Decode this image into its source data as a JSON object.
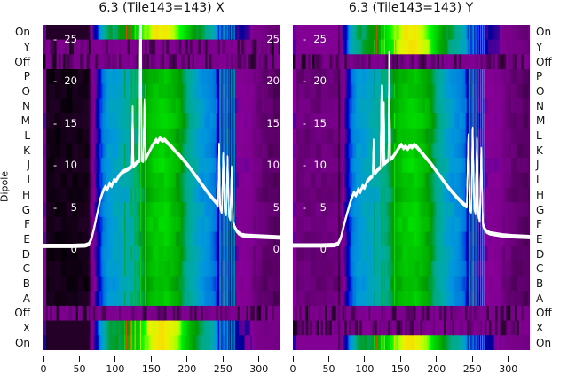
{
  "chart_data": {
    "type": "heatmap",
    "colormap": "nipy_spectral",
    "colormap_stops": [
      [
        0.0,
        [
          0,
          0,
          0
        ]
      ],
      [
        0.05,
        [
          119,
          0,
          136
        ]
      ],
      [
        0.1,
        [
          136,
          0,
          153
        ]
      ],
      [
        0.15,
        [
          0,
          0,
          153
        ]
      ],
      [
        0.2,
        [
          0,
          0,
          221
        ]
      ],
      [
        0.25,
        [
          0,
          119,
          221
        ]
      ],
      [
        0.3,
        [
          0,
          153,
          221
        ]
      ],
      [
        0.35,
        [
          0,
          170,
          170
        ]
      ],
      [
        0.4,
        [
          0,
          170,
          136
        ]
      ],
      [
        0.45,
        [
          0,
          153,
          0
        ]
      ],
      [
        0.5,
        [
          0,
          187,
          0
        ]
      ],
      [
        0.55,
        [
          0,
          221,
          0
        ]
      ],
      [
        0.6,
        [
          0,
          255,
          0
        ]
      ],
      [
        0.65,
        [
          187,
          255,
          0
        ]
      ],
      [
        0.7,
        [
          238,
          238,
          0
        ]
      ],
      [
        0.75,
        [
          255,
          204,
          0
        ]
      ],
      [
        0.8,
        [
          255,
          153,
          0
        ]
      ],
      [
        0.85,
        [
          255,
          0,
          0
        ]
      ],
      [
        0.9,
        [
          221,
          0,
          0
        ]
      ],
      [
        0.95,
        [
          204,
          0,
          0
        ]
      ],
      [
        1.0,
        [
          204,
          204,
          204
        ]
      ]
    ],
    "x_axis": {
      "ticks": [
        0,
        50,
        100,
        150,
        200,
        250,
        300
      ],
      "range": [
        0,
        330
      ]
    },
    "y_axis": {
      "label": "Dipole",
      "categories": [
        "On",
        "Y",
        "Off",
        "P",
        "O",
        "N",
        "M",
        "L",
        "K",
        "J",
        "I",
        "H",
        "G",
        "F",
        "E",
        "D",
        "C",
        "B",
        "A",
        "Off",
        "X",
        "On"
      ]
    },
    "overlay_axis": {
      "ticks": [
        25,
        20,
        15,
        10,
        5,
        0
      ],
      "color": "#ffffff"
    },
    "intensity_profile": [
      [
        0,
        0.1
      ],
      [
        3,
        0.1
      ],
      [
        4,
        0.0
      ],
      [
        62,
        0.0
      ],
      [
        66,
        0.05
      ],
      [
        70,
        0.1
      ],
      [
        74,
        0.14
      ],
      [
        78,
        0.21
      ],
      [
        83,
        0.26
      ],
      [
        90,
        0.3
      ],
      [
        100,
        0.32
      ],
      [
        112,
        0.34
      ],
      [
        124,
        0.37
      ],
      [
        132,
        0.41
      ],
      [
        140,
        0.46
      ],
      [
        148,
        0.5
      ],
      [
        156,
        0.52
      ],
      [
        170,
        0.53
      ],
      [
        180,
        0.5
      ],
      [
        188,
        0.47
      ],
      [
        196,
        0.42
      ],
      [
        204,
        0.37
      ],
      [
        212,
        0.33
      ],
      [
        222,
        0.3
      ],
      [
        232,
        0.275
      ],
      [
        240,
        0.24
      ],
      [
        243,
        0.18
      ],
      [
        245,
        0.14
      ],
      [
        265,
        0.13
      ],
      [
        269,
        0.1
      ],
      [
        276,
        0.095
      ],
      [
        288,
        0.085
      ],
      [
        294,
        0.05
      ],
      [
        308,
        0.04
      ],
      [
        330,
        0.035
      ]
    ],
    "panels": [
      {
        "id": "X",
        "title": "6.3 (Tile143=143) X",
        "bright_rows": [
          0,
          20,
          21
        ],
        "dark_rows": [
          1,
          2,
          19
        ],
        "floor": 0.008,
        "right_overlay_labels": true,
        "rfi_streaks_green": [
          113,
          122,
          127,
          135,
          141
        ],
        "rfi_streaks_red": [
          115,
          120
        ],
        "rfi_streaks_cyan": [
          245.5,
          248,
          250.5,
          253,
          255.5,
          258,
          261,
          263.5,
          266
        ],
        "curve": [
          [
            0,
            0.3
          ],
          [
            40,
            0.3
          ],
          [
            58,
            0.35
          ],
          [
            63,
            0.5
          ],
          [
            67,
            1.2
          ],
          [
            71,
            2.6
          ],
          [
            75,
            4.2
          ],
          [
            79,
            5.8
          ],
          [
            83,
            6.8
          ],
          [
            86,
            7.3
          ],
          [
            89,
            7.0
          ],
          [
            92,
            7.7
          ],
          [
            95,
            7.4
          ],
          [
            98,
            8.1
          ],
          [
            101,
            8.0
          ],
          [
            105,
            8.6
          ],
          [
            109,
            9.0
          ],
          [
            113,
            9.2
          ],
          [
            117,
            9.4
          ],
          [
            121,
            9.6
          ],
          [
            123,
            9.7
          ],
          [
            124.2,
            16.8
          ],
          [
            125.4,
            9.8
          ],
          [
            128,
            10.0
          ],
          [
            131,
            10.3
          ],
          [
            133.6,
            10.4
          ],
          [
            134.6,
            30
          ],
          [
            135.8,
            30
          ],
          [
            136.6,
            10.5
          ],
          [
            139,
            10.4
          ],
          [
            140.6,
            17.5
          ],
          [
            142,
            10.6
          ],
          [
            145,
            11.1
          ],
          [
            148,
            11.6
          ],
          [
            151,
            12.1
          ],
          [
            154,
            12.5
          ],
          [
            157,
            12.9
          ],
          [
            159,
            12.6
          ],
          [
            162,
            13.1
          ],
          [
            165,
            12.8
          ],
          [
            169,
            12.9
          ],
          [
            173,
            12.5
          ],
          [
            178,
            12.1
          ],
          [
            183,
            11.6
          ],
          [
            189,
            11.1
          ],
          [
            195,
            10.5
          ],
          [
            201,
            9.9
          ],
          [
            207,
            9.2
          ],
          [
            213,
            8.5
          ],
          [
            219,
            7.8
          ],
          [
            225,
            7.1
          ],
          [
            231,
            6.4
          ],
          [
            237,
            5.8
          ],
          [
            241,
            5.4
          ],
          [
            243.2,
            5.1
          ],
          [
            244.6,
            12.3
          ],
          [
            246,
            4.9
          ],
          [
            248.4,
            4.3
          ],
          [
            250.4,
            11.2
          ],
          [
            252.4,
            4.5
          ],
          [
            254.4,
            4.1
          ],
          [
            256.4,
            10.8
          ],
          [
            258.4,
            3.9
          ],
          [
            260.2,
            3.5
          ],
          [
            262,
            9.6
          ],
          [
            264,
            3.1
          ],
          [
            266.4,
            2.5
          ],
          [
            269,
            2.1
          ],
          [
            272,
            1.8
          ],
          [
            276,
            1.6
          ],
          [
            282,
            1.5
          ],
          [
            292,
            1.45
          ],
          [
            305,
            1.4
          ],
          [
            330,
            1.3
          ]
        ]
      },
      {
        "id": "Y",
        "title": "6.3 (Tile143=143) Y",
        "bright_rows": [
          0,
          1,
          21
        ],
        "dark_rows": [
          2,
          19,
          20
        ],
        "floor": 0.045,
        "right_overlay_labels": false,
        "rfi_streaks_green": [
          113,
          123,
          127,
          135,
          141
        ],
        "rfi_streaks_red": [
          116
        ],
        "rfi_streaks_cyan": [
          245.5,
          248,
          250.5,
          253,
          255.5,
          258,
          261,
          263.5,
          266
        ],
        "curve": [
          [
            0,
            0.35
          ],
          [
            40,
            0.35
          ],
          [
            58,
            0.4
          ],
          [
            63,
            0.55
          ],
          [
            67,
            1.3
          ],
          [
            71,
            2.7
          ],
          [
            75,
            4.0
          ],
          [
            79,
            5.2
          ],
          [
            82,
            6.0
          ],
          [
            85,
            6.6
          ],
          [
            88,
            6.3
          ],
          [
            91,
            7.0
          ],
          [
            94,
            6.7
          ],
          [
            97,
            7.4
          ],
          [
            100,
            7.2
          ],
          [
            103,
            7.9
          ],
          [
            107,
            8.3
          ],
          [
            111,
            8.6
          ],
          [
            112.4,
            12.8
          ],
          [
            113.8,
            8.9
          ],
          [
            116,
            9.1
          ],
          [
            119,
            9.4
          ],
          [
            122,
            9.6
          ],
          [
            123.4,
            19.2
          ],
          [
            124.8,
            9.9
          ],
          [
            126,
            10.0
          ],
          [
            126.8,
            17.2
          ],
          [
            127.8,
            10.1
          ],
          [
            130,
            10.3
          ],
          [
            133,
            10.5
          ],
          [
            134.2,
            23.2
          ],
          [
            135.6,
            10.6
          ],
          [
            139,
            10.8
          ],
          [
            142,
            11.2
          ],
          [
            145,
            11.6
          ],
          [
            148,
            12.0
          ],
          [
            151,
            12.3
          ],
          [
            154,
            11.9
          ],
          [
            157,
            12.1
          ],
          [
            160,
            11.8
          ],
          [
            163,
            12.2
          ],
          [
            166,
            12.0
          ],
          [
            169,
            12.3
          ],
          [
            172,
            12.1
          ],
          [
            176,
            11.7
          ],
          [
            181,
            11.2
          ],
          [
            186,
            10.7
          ],
          [
            192,
            10.1
          ],
          [
            198,
            9.4
          ],
          [
            204,
            8.7
          ],
          [
            210,
            8.0
          ],
          [
            216,
            7.3
          ],
          [
            222,
            6.7
          ],
          [
            228,
            6.1
          ],
          [
            234,
            5.6
          ],
          [
            239,
            5.2
          ],
          [
            242.2,
            5.0
          ],
          [
            244.4,
            13.4
          ],
          [
            246.4,
            4.7
          ],
          [
            248.4,
            4.4
          ],
          [
            250.4,
            14.2
          ],
          [
            252.6,
            4.8
          ],
          [
            254.4,
            4.2
          ],
          [
            256.4,
            13.0
          ],
          [
            258.4,
            3.8
          ],
          [
            260.4,
            3.3
          ],
          [
            262.4,
            11.8
          ],
          [
            264.6,
            2.9
          ],
          [
            267,
            2.3
          ],
          [
            270,
            2.0
          ],
          [
            274,
            1.8
          ],
          [
            281,
            1.7
          ],
          [
            292,
            1.55
          ],
          [
            305,
            1.45
          ],
          [
            330,
            1.35
          ]
        ]
      }
    ],
    "curve_color": "#ffffff"
  }
}
